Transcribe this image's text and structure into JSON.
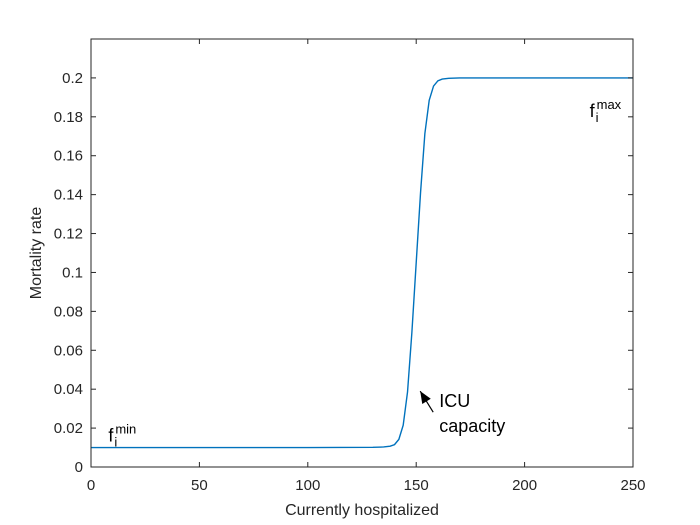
{
  "chart_data": {
    "type": "line",
    "xlabel": "Currently hospitalized",
    "ylabel": "Mortality rate",
    "xlim": [
      0,
      250
    ],
    "ylim": [
      0,
      0.22
    ],
    "xticks": [
      0,
      50,
      100,
      150,
      200,
      250
    ],
    "xtick_labels": [
      "0",
      "50",
      "100",
      "150",
      "200",
      "250"
    ],
    "yticks": [
      0,
      0.02,
      0.04,
      0.06,
      0.08,
      0.1,
      0.12,
      0.14,
      0.16,
      0.18,
      0.2
    ],
    "ytick_labels": [
      "0",
      "0.02",
      "0.04",
      "0.06",
      "0.08",
      "0.1",
      "0.12",
      "0.14",
      "0.16",
      "0.18",
      "0.2"
    ],
    "grid": false,
    "series": [
      {
        "color": "#0072bd",
        "x": [
          0,
          100,
          130,
          135,
          138,
          140,
          142,
          144,
          146,
          148,
          150,
          152,
          154,
          156,
          158,
          160,
          162,
          165,
          170,
          200,
          250
        ],
        "y": [
          0.01,
          0.01,
          0.0101,
          0.0103,
          0.0107,
          0.0115,
          0.0142,
          0.0215,
          0.0386,
          0.069,
          0.105,
          0.141,
          0.1714,
          0.1885,
          0.1958,
          0.1985,
          0.1994,
          0.1998,
          0.2,
          0.2,
          0.2
        ]
      }
    ],
    "annotations": {
      "fmin": {
        "base": "f",
        "sub": "i",
        "sup": "min",
        "at": [
          8,
          0.013
        ]
      },
      "fmax": {
        "base": "f",
        "sub": "i",
        "sup": "max",
        "at": [
          230,
          0.18
        ]
      },
      "icu": {
        "line1": "ICU",
        "line2": "capacity",
        "arrow_to": [
          150,
          0.04
        ]
      }
    }
  }
}
